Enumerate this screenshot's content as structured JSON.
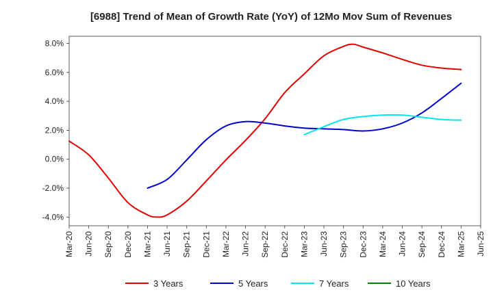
{
  "chart_data": {
    "type": "line",
    "title": "[6988]  Trend of Mean of Growth Rate (YoY) of 12Mo Mov Sum of Revenues",
    "xlabel": "",
    "ylabel": "",
    "ylim": [
      -4.6,
      8.5
    ],
    "yticks": [
      -4.0,
      -2.0,
      0.0,
      2.0,
      4.0,
      6.0,
      8.0
    ],
    "ytick_labels": [
      "-4.0%",
      "-2.0%",
      "0.0%",
      "2.0%",
      "4.0%",
      "6.0%",
      "8.0%"
    ],
    "xlim": [
      0,
      21
    ],
    "xtick_labels": [
      "Mar-20",
      "Jun-20",
      "Sep-20",
      "Dec-20",
      "Mar-21",
      "Jun-21",
      "Sep-21",
      "Dec-21",
      "Mar-22",
      "Jun-22",
      "Sep-22",
      "Dec-22",
      "Mar-23",
      "Jun-23",
      "Sep-23",
      "Dec-23",
      "Mar-24",
      "Jun-24",
      "Sep-24",
      "Dec-24",
      "Mar-25",
      "Jun-25"
    ],
    "grid": true,
    "legend_position": "bottom",
    "series": [
      {
        "name": "3 Years",
        "color": "#e00000",
        "x": [
          0,
          1,
          2,
          3,
          4,
          4.5,
          5,
          6,
          7,
          8,
          9,
          10,
          11,
          12,
          13,
          14,
          14.5,
          15,
          16,
          17,
          18,
          19,
          20
        ],
        "values": [
          1.25,
          0.3,
          -1.3,
          -3.0,
          -3.85,
          -4.0,
          -3.85,
          -2.9,
          -1.5,
          -0.05,
          1.3,
          2.8,
          4.6,
          5.9,
          7.15,
          7.8,
          7.95,
          7.75,
          7.35,
          6.9,
          6.5,
          6.3,
          6.2
        ]
      },
      {
        "name": "5 Years",
        "color": "#0000cc",
        "x": [
          4,
          5,
          6,
          7,
          8,
          9,
          10,
          11,
          12,
          13,
          14,
          15,
          16,
          17,
          18,
          19,
          20
        ],
        "values": [
          -2.0,
          -1.4,
          -0.05,
          1.35,
          2.3,
          2.6,
          2.5,
          2.3,
          2.15,
          2.1,
          2.05,
          1.95,
          2.1,
          2.5,
          3.2,
          4.2,
          5.25
        ]
      },
      {
        "name": "7 Years",
        "color": "#00e5ee",
        "x": [
          12,
          13,
          14,
          15,
          16,
          17,
          18,
          19,
          20
        ],
        "values": [
          1.7,
          2.25,
          2.75,
          2.95,
          3.05,
          3.05,
          2.9,
          2.75,
          2.7
        ]
      },
      {
        "name": "10 Years",
        "color": "#008000",
        "x": [],
        "values": []
      }
    ]
  }
}
